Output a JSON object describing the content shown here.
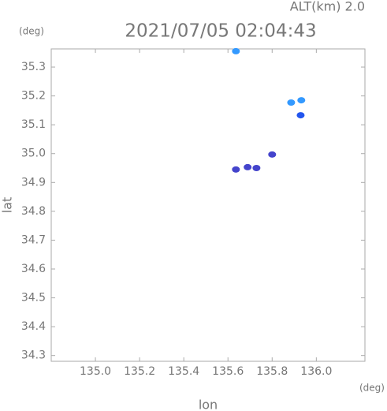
{
  "chart_data": {
    "type": "scatter",
    "title": "2021/07/05 02:04:43",
    "subtitle": "ALT(km) 2.0",
    "y_unit": "(deg)",
    "x_unit": "(deg)",
    "xlabel": "lon",
    "ylabel": "lat",
    "x": [
      135.636,
      135.886,
      135.932,
      135.929,
      135.8,
      135.636,
      135.689,
      135.729
    ],
    "y": [
      35.355,
      35.177,
      35.185,
      35.133,
      34.997,
      34.945,
      34.953,
      34.95
    ],
    "colors": [
      "#3399ff",
      "#3399ff",
      "#3399ff",
      "#2255ee",
      "#4444cc",
      "#4444cc",
      "#4444cc",
      "#4444cc"
    ],
    "xlim": [
      134.8,
      136.22
    ],
    "ylim": [
      34.28,
      35.363
    ],
    "xticks": [
      {
        "value": 135,
        "label": "135.0"
      },
      135.2,
      135.4,
      135.6,
      135.8,
      {
        "value": 136,
        "label": "136.0"
      }
    ],
    "yticks": [
      35.3,
      35.2,
      35.1,
      {
        "value": 35,
        "label": "35.0"
      },
      34.9,
      34.8,
      34.7,
      34.6,
      34.5,
      34.4,
      34.3
    ]
  }
}
